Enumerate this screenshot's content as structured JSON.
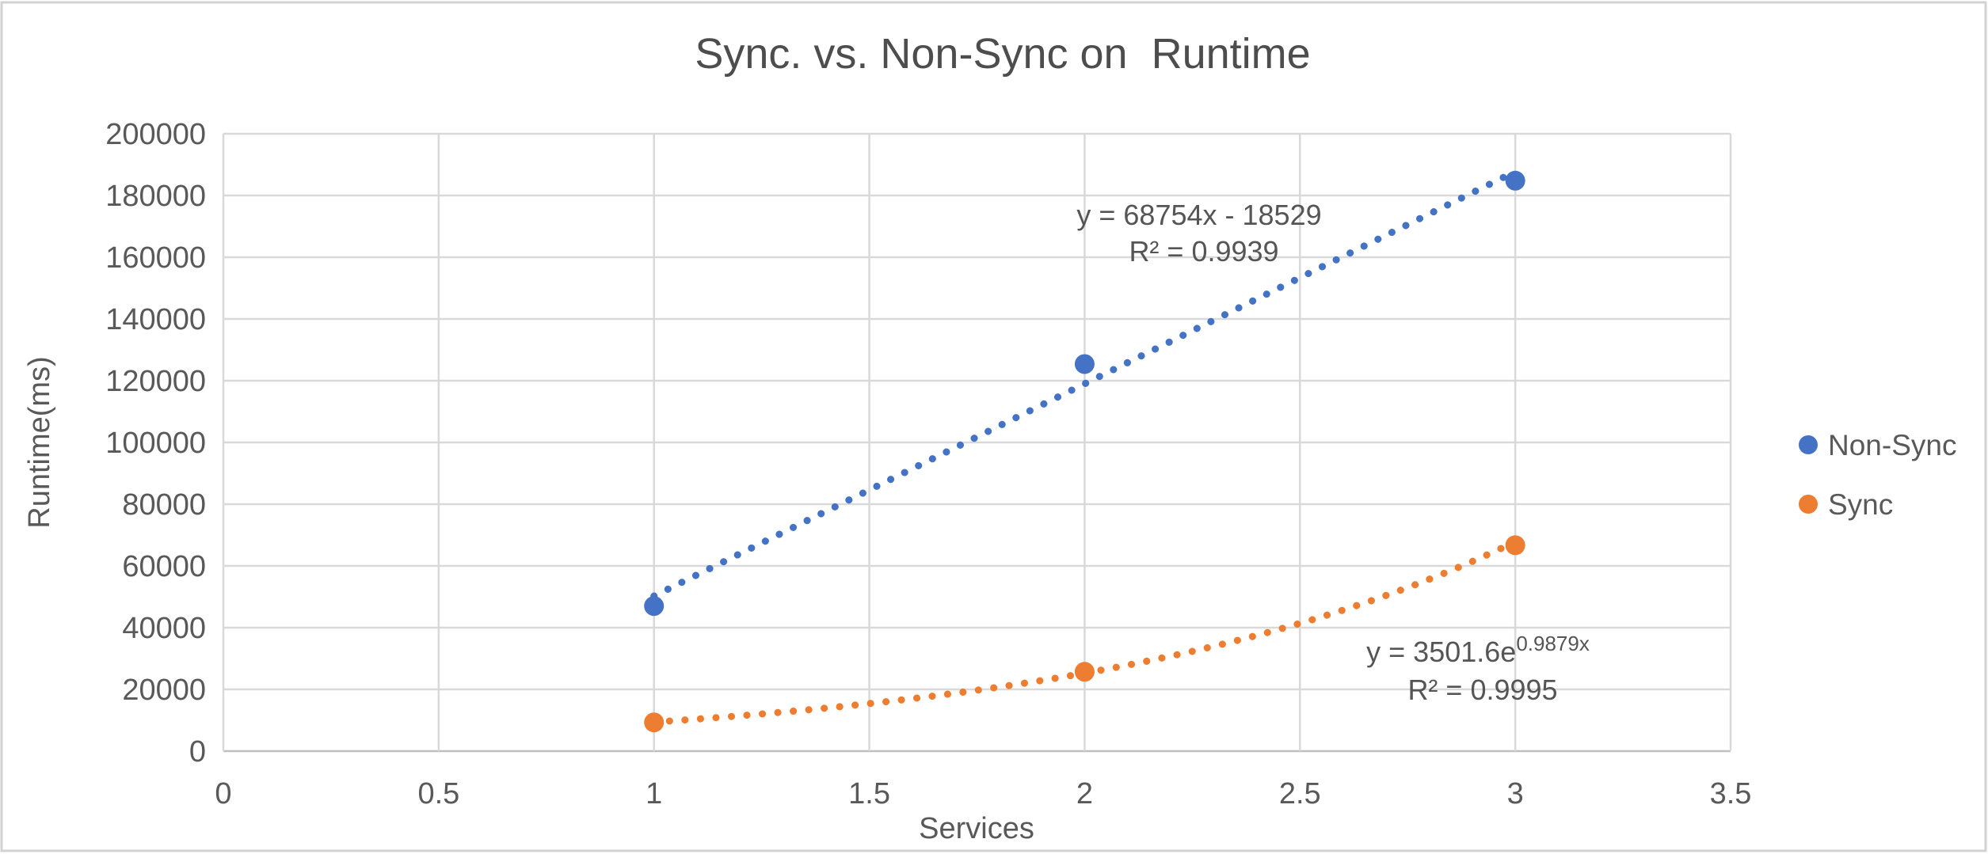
{
  "frame": {
    "background": "#ffffff",
    "border_color": "#d2d2d2"
  },
  "chart_data": {
    "type": "scatter",
    "title": "Sync. vs. Non-Sync on  Runtime",
    "xlabel": "Services",
    "ylabel": "Runtime(ms)",
    "xlim": [
      0,
      3.5
    ],
    "ylim": [
      0,
      200000
    ],
    "xtick_step": 0.5,
    "ytick_step": 20000,
    "x_tick_labels": [
      "0",
      "0.5",
      "1",
      "1.5",
      "2",
      "2.5",
      "3",
      "3.5"
    ],
    "y_tick_labels": [
      "0",
      "20000",
      "40000",
      "60000",
      "80000",
      "100000",
      "120000",
      "140000",
      "160000",
      "180000",
      "200000"
    ],
    "grid": true,
    "legend_position": "right",
    "series": [
      {
        "name": "Non-Sync",
        "color": "#4472C4",
        "marker": "circle",
        "x": [
          1,
          2,
          3
        ],
        "y": [
          47000,
          125400,
          184800
        ],
        "trendline": {
          "type": "linear",
          "slope": 68754,
          "intercept": -18529,
          "range": [
            1,
            3
          ],
          "style": "dotted",
          "equation_label": "y = 68754x - 18529",
          "r2_label": "R² = 0.9939"
        }
      },
      {
        "name": "Sync",
        "color": "#ED7D31",
        "marker": "circle",
        "x": [
          1,
          2,
          3
        ],
        "y": [
          9300,
          25700,
          66700
        ],
        "trendline": {
          "type": "exponential",
          "coefficient": 3501.6,
          "exponent": 0.9879,
          "range": [
            1,
            3
          ],
          "style": "dotted",
          "equation_base": "y = 3501.6e",
          "equation_sup": "0.9879x",
          "r2_label": "R² = 0.9995"
        }
      }
    ],
    "colors": {
      "gridline": "#D9D9D9",
      "axis_line": "#BFBFBF",
      "axis_text": "#595959",
      "title_text": "#4d4d4d",
      "annotation_text": "#555555"
    }
  }
}
